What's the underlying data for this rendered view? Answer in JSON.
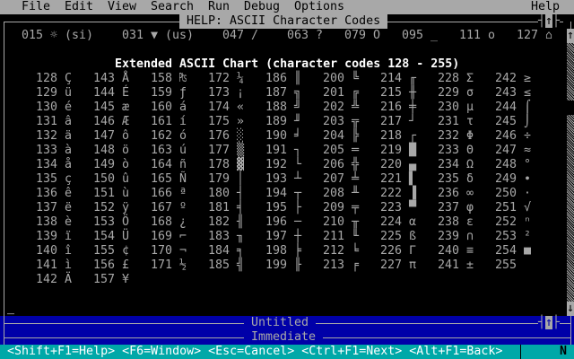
{
  "menu": {
    "items": [
      {
        "label": "File",
        "col": 3
      },
      {
        "label": "Edit",
        "col": 9
      },
      {
        "label": "View",
        "col": 15
      },
      {
        "label": "Search",
        "col": 21
      },
      {
        "label": "Run",
        "col": 29
      },
      {
        "label": "Debug",
        "col": 34
      },
      {
        "label": "Options",
        "col": 41
      },
      {
        "label": "Help",
        "col": 74
      }
    ]
  },
  "help_window": {
    "title": "HELP: ASCII Character Codes",
    "maximize_icon": "↑",
    "top_row": [
      {
        "text": "015 ☼ (si)",
        "col": 3
      },
      {
        "text": "031 ▼ (us)",
        "col": 17
      },
      {
        "text": "047 /",
        "col": 31
      },
      {
        "text": "063 ?",
        "col": 40
      },
      {
        "text": "079 O",
        "col": 48
      },
      {
        "text": "095 _",
        "col": 56
      },
      {
        "text": "111 o",
        "col": 64
      },
      {
        "text": "127 ⌂",
        "col": 72
      }
    ],
    "heading": "Extended ASCII Chart (character codes 128 - 255)",
    "scroll_up_icon": "↑",
    "scroll_down_icon": "↓"
  },
  "chart": {
    "columns": [
      {
        "start": 128,
        "chars": [
          "Ç",
          "ü",
          "é",
          "â",
          "ä",
          "à",
          "å",
          "ç",
          "ê",
          "ë",
          "è",
          "ï",
          "î",
          "ì",
          "Ä"
        ]
      },
      {
        "start": 143,
        "chars": [
          "Å",
          "É",
          "æ",
          "Æ",
          "ô",
          "ö",
          "ò",
          "û",
          "ù",
          "ÿ",
          "Ö",
          "Ü",
          "¢",
          "£",
          "¥"
        ]
      },
      {
        "start": 158,
        "chars": [
          "₧",
          "ƒ",
          "á",
          "í",
          "ó",
          "ú",
          "ñ",
          "Ñ",
          "ª",
          "º",
          "¿",
          "⌐",
          "¬",
          "½"
        ]
      },
      {
        "start": 172,
        "chars": [
          "¼",
          "¡",
          "«",
          "»",
          "░",
          "▒",
          "▓",
          "│",
          "┤",
          "╡",
          "╢",
          "╖",
          "╕",
          "╣"
        ]
      },
      {
        "start": 186,
        "chars": [
          "║",
          "╗",
          "╝",
          "╜",
          "╛",
          "┐",
          "└",
          "┴",
          "┬",
          "├",
          "─",
          "┼",
          "╞",
          "╟"
        ]
      },
      {
        "start": 200,
        "chars": [
          "╚",
          "╔",
          "╩",
          "╦",
          "╠",
          "═",
          "╬",
          "╧",
          "╨",
          "╤",
          "╥",
          "╙",
          "╘",
          "╒"
        ]
      },
      {
        "start": 214,
        "chars": [
          "╓",
          "╫",
          "╪",
          "┘",
          "┌",
          "█",
          "▄",
          "▌",
          "▐",
          "▀",
          "α",
          "ß",
          "Γ",
          "π"
        ]
      },
      {
        "start": 228,
        "chars": [
          "Σ",
          "σ",
          "µ",
          "τ",
          "Φ",
          "Θ",
          "Ω",
          "δ",
          "∞",
          "φ",
          "ε",
          "∩",
          "≡",
          "±"
        ]
      },
      {
        "start": 242,
        "chars": [
          "≥",
          "≤",
          "⌠",
          "⌡",
          "÷",
          "≈",
          "°",
          "∙",
          "·",
          "√",
          "ⁿ",
          "²",
          "■",
          " "
        ]
      }
    ]
  },
  "cursor": "_",
  "untitled_window": {
    "title": "Untitled",
    "maximize_icon": "↑"
  },
  "immediate_window": {
    "title": "Immediate"
  },
  "status_bar": {
    "hints": "<Shift+F1=Help> <F6=Window> <Esc=Cancel> <Ctrl+F1=Next> <Alt+F1=Back>",
    "mode": "N"
  },
  "colors": {
    "menu_bg": "#a8a8a8",
    "text": "#a8a8a8",
    "window_blue": "#0000a8",
    "status_teal": "#00a8a8"
  }
}
